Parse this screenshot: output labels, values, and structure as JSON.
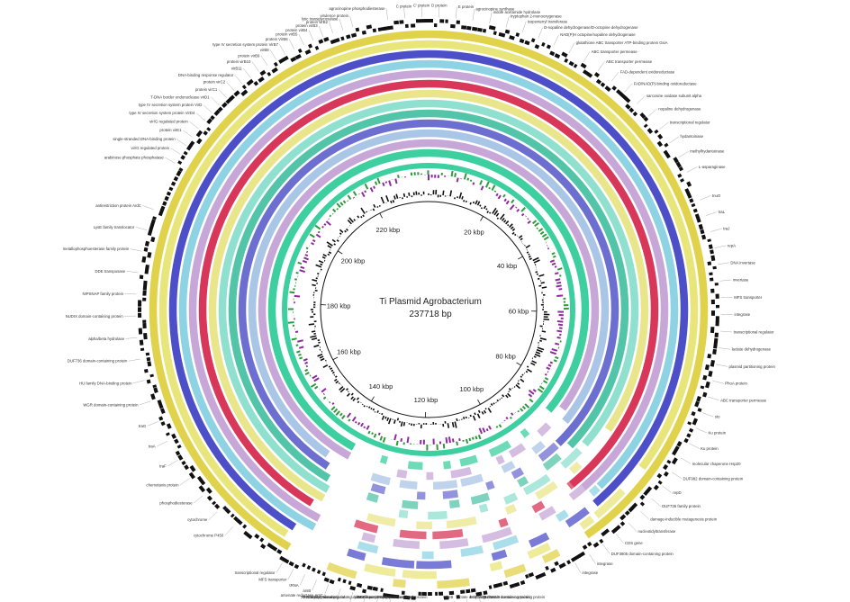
{
  "plasmid": {
    "title": "Ti Plasmid Agrobacterium",
    "length_label": "237718 bp",
    "length_bp": 237718
  },
  "kbp_ticks": [
    {
      "kb": 20,
      "label": "20 kbp"
    },
    {
      "kb": 40,
      "label": "40 kbp"
    },
    {
      "kb": 60,
      "label": "60 kbp"
    },
    {
      "kb": 80,
      "label": "80 kbp"
    },
    {
      "kb": 100,
      "label": "100 kbp"
    },
    {
      "kb": 120,
      "label": "120 kbp"
    },
    {
      "kb": 140,
      "label": "140 kbp"
    },
    {
      "kb": 160,
      "label": "160 kbp"
    },
    {
      "kb": 180,
      "label": "180 kbp"
    },
    {
      "kb": 200,
      "label": "200 kbp"
    },
    {
      "kb": 220,
      "label": "220 kbp"
    }
  ],
  "colors": {
    "gene_track": "#111111",
    "gc_skew_pos": "#2e9a3c",
    "gc_skew_neg": "#8e2aa0",
    "gc_content": "#111111",
    "backbone": "#3ecfa0",
    "rings": [
      "#3ecfa0",
      "#c7a7d8",
      "#a9c6e6",
      "#6d6fd0",
      "#52c4a8",
      "#8fe0cf",
      "#e8e58a",
      "#d9375a",
      "#c7a7d8",
      "#8ed3e3",
      "#4c4fc8",
      "#e8e57a",
      "#e0d24a"
    ]
  },
  "gene_labels": {
    "top": [
      "agrocinopine phosphodiesterase",
      "C protein",
      "C' protein",
      "D protein",
      "E protein",
      "agrocinopine synthase",
      "indole acetamide hydrolase",
      "tryptophan 2-monooxygenase",
      "isopentenyl transferase",
      "D-nopaline dehydrogenase/D-octopine dehydrogenase",
      "NAD(P)H octopine/nopaline dehydrogenase",
      "glutathione ABC transporter ATP-binding protein GsiA",
      "ABC transporter permease",
      "ABC transporter permease",
      "FAD-dependent oxidoreductase",
      "FAD/NAD(P)-binding oxidoreductase",
      "sarcosine oxidase subunit alpha",
      "nopaline dehydrogenase",
      "transcriptional regulator",
      "hydantoinase",
      "methylhydantoinase",
      "L-asparaginase"
    ],
    "upper_left": [
      "arabinose phosphate phosphatase",
      "vir/G regulated protein",
      "single-stranded DNA-binding protein",
      "protein virE1",
      "vir/G regulated protein",
      "type IV secretion system protein VirD4",
      "type IV secretion system protein VirD",
      "T-DNA border endonuclease virD1",
      "protein virC1",
      "protein virC2",
      "DNA-binding response regulator",
      "virB11",
      "protein virB10",
      "protein virB9",
      "virB8",
      "type IV secretion system protein VirB7",
      "protein VirB6",
      "protein virB5",
      "protein virB4",
      "protein virB3",
      "protein virB2",
      "lytic transglycosylase",
      "virulence protein"
    ],
    "left": [
      "cytochrome P450",
      "cytochrome",
      "phosphodiesterase",
      "chemotaxis protein",
      "traF",
      "traA",
      "traG",
      "WGR domain-containing protein",
      "HU family DNA-binding protein",
      "DUF736 domain-containing protein",
      "alpha/beta hydrolase",
      "NUDIX domain-containing protein",
      "NIPSNAP family protein",
      "DDE transposase",
      "metallophosphoesterase family protein",
      "LysE family translocator",
      "antirestriction protein ArdC"
    ],
    "bottom": [
      "DUF1419 domain-containing protein",
      "DUF3560 domain-containing protein",
      "lactate dehydrogenase",
      "MbeB",
      "prevent host death protein",
      "PIN domain nuclease",
      "plasmid partitioning protein",
      "DDE transposase",
      "resolvase",
      "XRE family transcriptional regulator",
      "transcriptional regulator",
      "N-acetyltransferase",
      "arsenate reductase ArsC",
      "arsB",
      "tRNA",
      "MFS transporter",
      "transcriptional regulator"
    ],
    "right": [
      "tnuO",
      "traL",
      "traJ",
      "repA",
      "DNA invertase",
      "invertase",
      "MFS transporter",
      "integrase",
      "transcriptional regulator",
      "lactate dehydrogenase",
      "plasmid partitioning protein",
      "PhoA protein",
      "ABC transporter permease",
      "sto",
      "Ku protein",
      "Ku protein",
      "molecular chaperone Hsp20",
      "DUF982 domain-containing protein",
      "repD",
      "DUF736 family protein",
      "damage-inducible mutagenesis protein",
      "nucleotidyltransferase",
      "CDS gene",
      "DUF3805 domain-containing protein",
      "integrase",
      "integrase"
    ]
  }
}
